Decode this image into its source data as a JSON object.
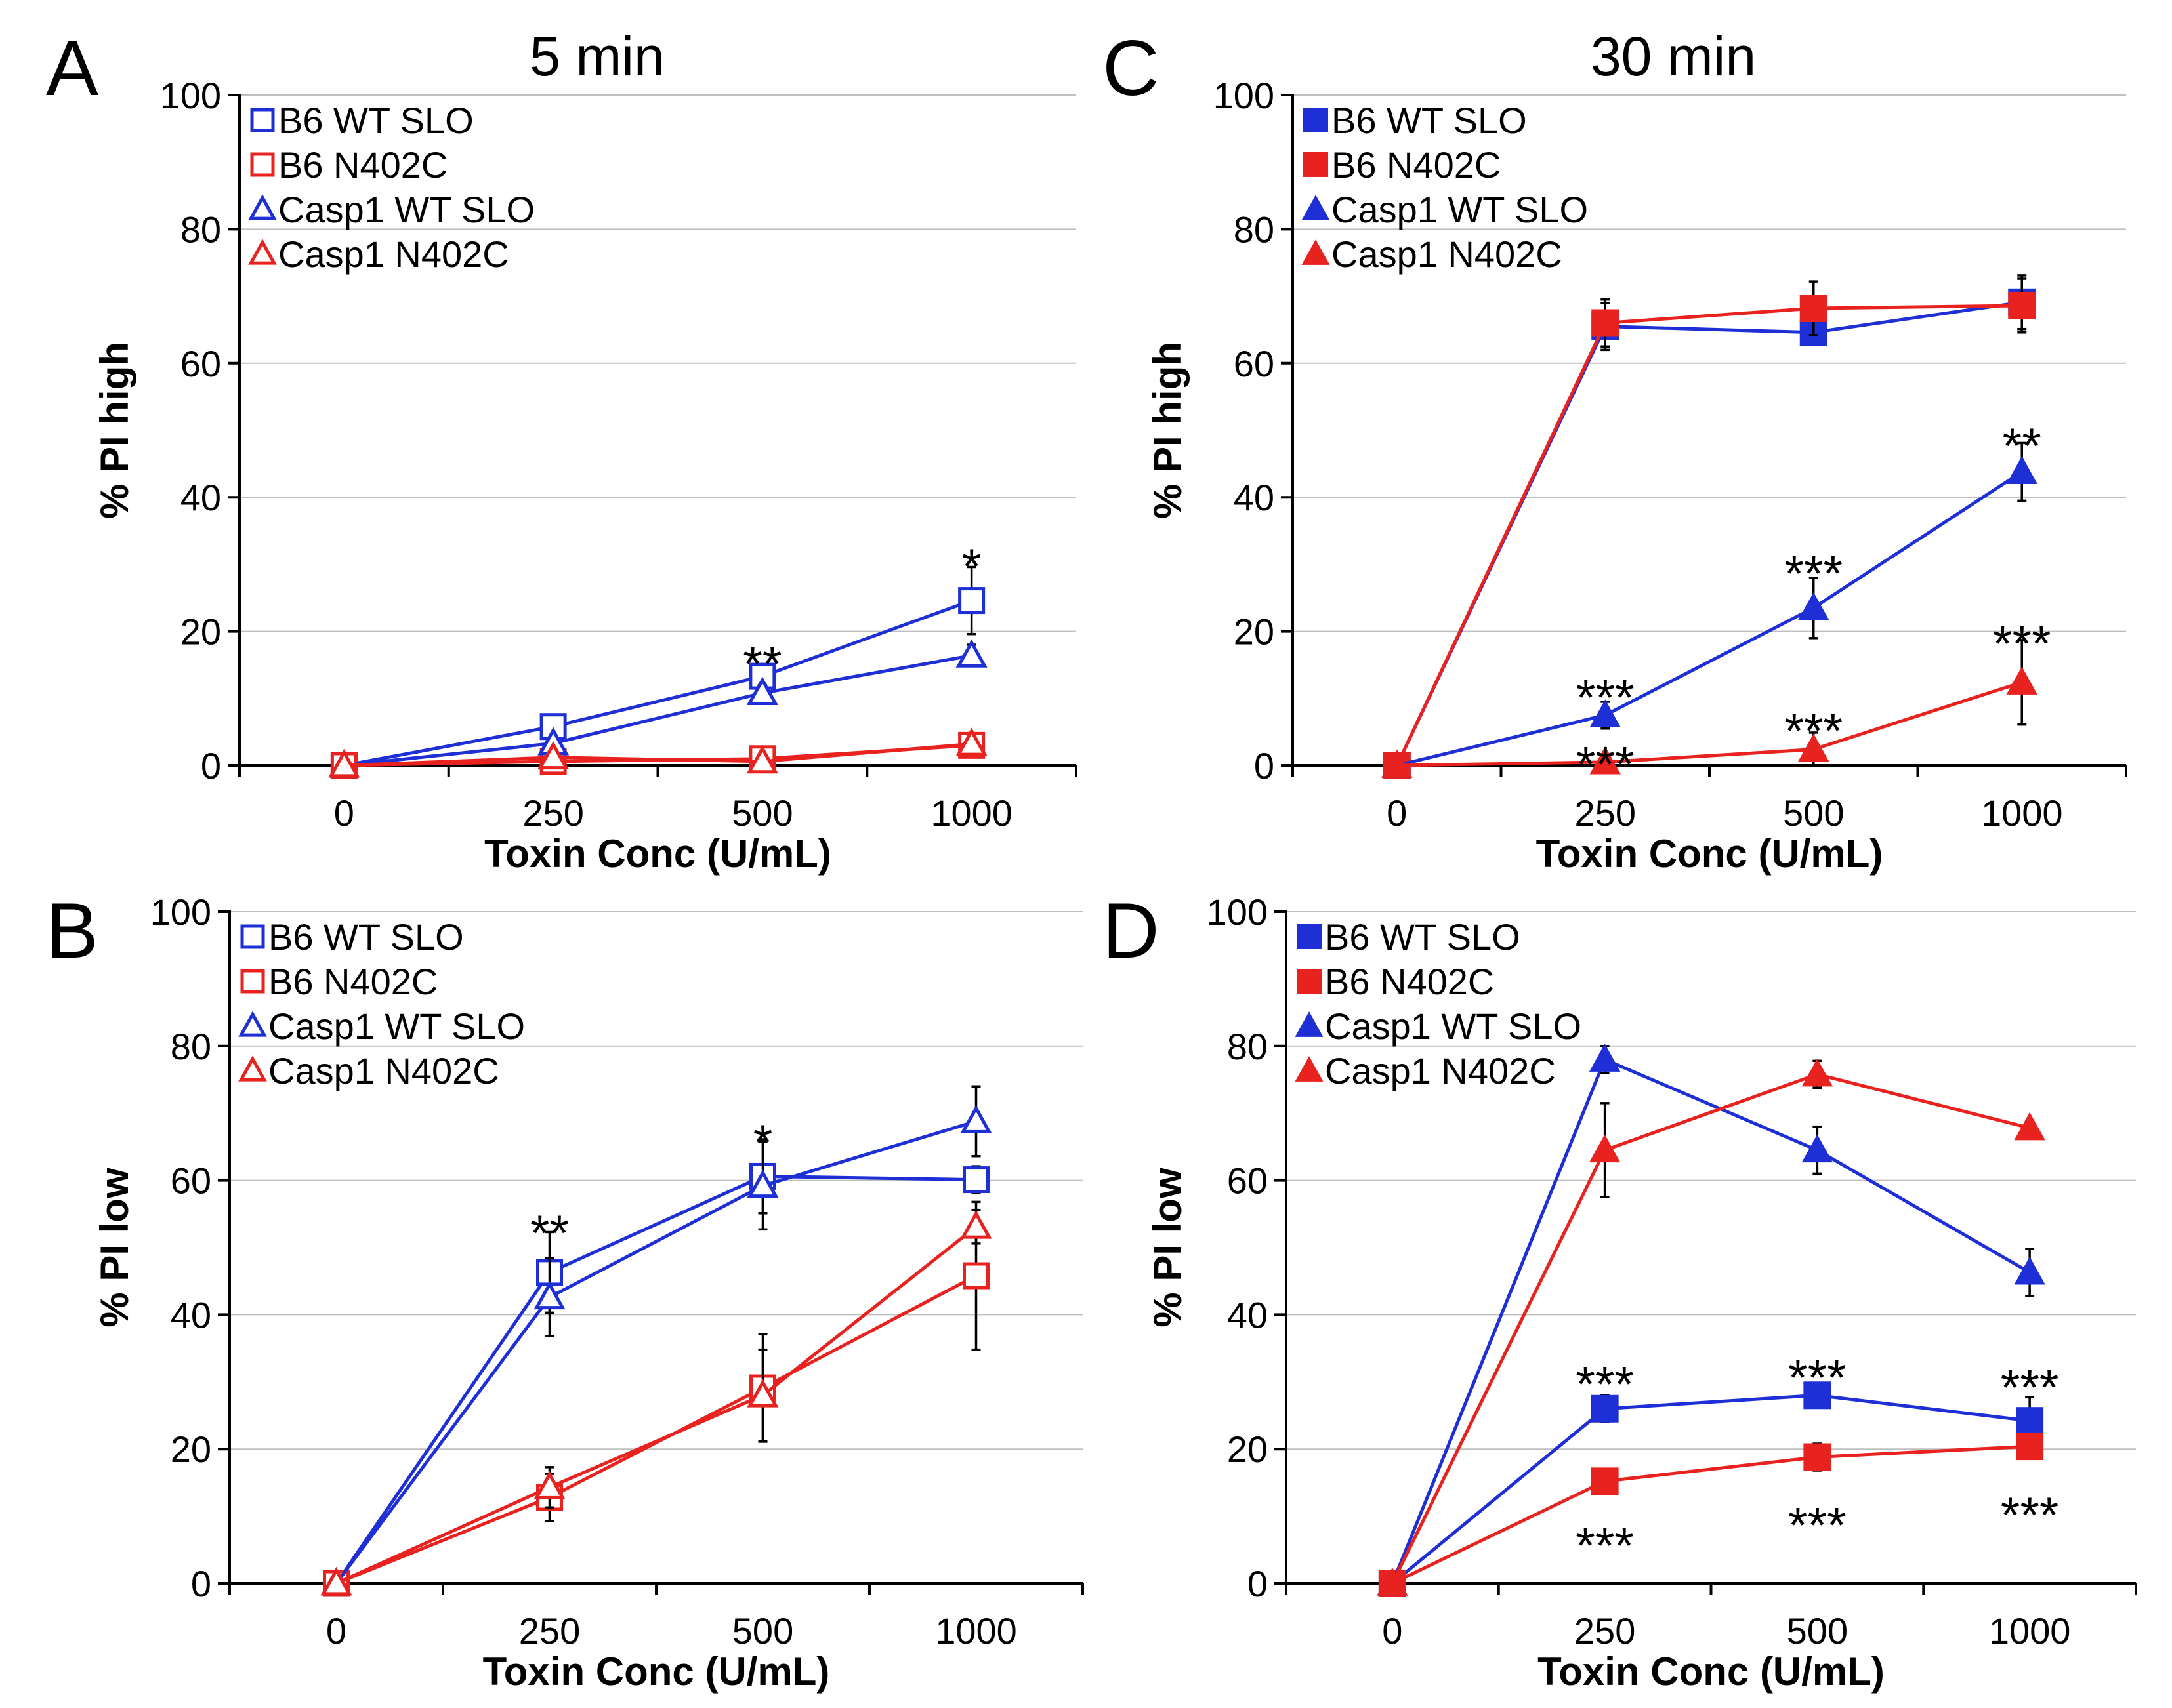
{
  "figure": {
    "colors": {
      "blue": "#1f2fd6",
      "red": "#e8221f",
      "axis": "#000000",
      "grid": "#bfbfbf"
    }
  },
  "chart_data": [
    {
      "id": "A",
      "letter": "A",
      "title": "5 min",
      "type": "line",
      "categories": [
        "0",
        "250",
        "500",
        "1000"
      ],
      "xlabel": "Toxin Conc (U/mL)",
      "ylabel": "% PI high",
      "ylim": [
        0,
        100
      ],
      "yticks": [
        "0",
        "20",
        "40",
        "60",
        "80",
        "100"
      ],
      "grid": true,
      "legend_position": "top-left",
      "series": [
        {
          "name": "B6 WT SLO",
          "color": "#1f2fd6",
          "marker": "square",
          "filled": false,
          "values": [
            0,
            5.8,
            13.3,
            24.6
          ],
          "errors": [
            0,
            0.8,
            1.8,
            5
          ]
        },
        {
          "name": "B6 N402C",
          "color": "#e8221f",
          "marker": "square",
          "filled": false,
          "values": [
            0,
            0.6,
            1.0,
            3.0
          ],
          "errors": [
            0,
            0.3,
            0.4,
            0.6
          ]
        },
        {
          "name": "Casp1 WT SLO",
          "color": "#1f2fd6",
          "marker": "triangle",
          "filled": false,
          "values": [
            0,
            3.3,
            10.8,
            16.4
          ],
          "errors": [
            0,
            0.6,
            1.2,
            1.6
          ]
        },
        {
          "name": "Casp1 N402C",
          "color": "#e8221f",
          "marker": "triangle",
          "filled": false,
          "values": [
            0,
            1.2,
            0.6,
            3.2
          ],
          "errors": [
            0,
            0.3,
            0.3,
            0.8
          ]
        }
      ],
      "annotations": [
        {
          "text": "**",
          "x_index": 2,
          "y": 16.5
        },
        {
          "text": "*",
          "x_index": 3,
          "y": 31
        }
      ]
    },
    {
      "id": "C",
      "letter": "C",
      "title": "30 min",
      "type": "line",
      "categories": [
        "0",
        "250",
        "500",
        "1000"
      ],
      "xlabel": "Toxin Conc (U/mL)",
      "ylabel": "% PI high",
      "ylim": [
        0,
        100
      ],
      "yticks": [
        "0",
        "20",
        "40",
        "60",
        "80",
        "100"
      ],
      "grid": true,
      "legend_position": "top-left",
      "series": [
        {
          "name": "B6 WT SLO",
          "color": "#1f2fd6",
          "marker": "square",
          "filled": true,
          "values": [
            0,
            65.5,
            64.6,
            69.1
          ],
          "errors": [
            0,
            3.5,
            1.5,
            4
          ]
        },
        {
          "name": "B6 N402C",
          "color": "#e8221f",
          "marker": "square",
          "filled": true,
          "values": [
            0,
            66.0,
            68.2,
            68.6
          ],
          "errors": [
            0,
            3.5,
            4,
            4
          ]
        },
        {
          "name": "Casp1 WT SLO",
          "color": "#1f2fd6",
          "marker": "triangle",
          "filled": true,
          "values": [
            0,
            7.5,
            23.5,
            43.8
          ],
          "errors": [
            0,
            2,
            4.5,
            4.3
          ]
        },
        {
          "name": "Casp1 N402C",
          "color": "#e8221f",
          "marker": "triangle",
          "filled": true,
          "values": [
            0,
            0.5,
            2.4,
            12.4
          ],
          "errors": [
            0,
            0.3,
            2.5,
            6.3
          ]
        }
      ],
      "annotations": [
        {
          "text": "**",
          "x_index": 3,
          "y": 49
        },
        {
          "text": "***",
          "x_index": 2,
          "y": 30
        },
        {
          "text": "***",
          "x_index": 3,
          "y": 19.5
        },
        {
          "text": "***",
          "x_index": 1,
          "y": 11.5
        },
        {
          "text": "***",
          "x_index": 2,
          "y": 6.5
        },
        {
          "text": "***",
          "x_index": 1,
          "y": 1.5
        }
      ]
    },
    {
      "id": "B",
      "letter": "B",
      "title": "",
      "type": "line",
      "categories": [
        "0",
        "250",
        "500",
        "1000"
      ],
      "xlabel": "Toxin Conc (U/mL)",
      "ylabel": "% PI low",
      "ylim": [
        0,
        100
      ],
      "yticks": [
        "0",
        "20",
        "40",
        "60",
        "80",
        "100"
      ],
      "grid": true,
      "legend_position": "top-left",
      "series": [
        {
          "name": "B6 WT SLO",
          "color": "#1f2fd6",
          "marker": "square",
          "filled": false,
          "values": [
            0,
            46.3,
            60.6,
            60.1
          ],
          "errors": [
            0,
            6,
            5.5,
            2
          ]
        },
        {
          "name": "B6 N402C",
          "color": "#e8221f",
          "marker": "square",
          "filled": false,
          "values": [
            0,
            12.8,
            29.1,
            45.8
          ],
          "errors": [
            0,
            3.5,
            8,
            11
          ]
        },
        {
          "name": "Casp1 WT SLO",
          "color": "#1f2fd6",
          "marker": "triangle",
          "filled": false,
          "values": [
            0,
            42.6,
            59.2,
            68.8
          ],
          "errors": [
            0,
            5.8,
            6.5,
            5.2
          ]
        },
        {
          "name": "Casp1 N402C",
          "color": "#e8221f",
          "marker": "triangle",
          "filled": false,
          "values": [
            0,
            14.3,
            28.0,
            53.1
          ],
          "errors": [
            0,
            3,
            6.8,
            2.5
          ]
        }
      ],
      "annotations": [
        {
          "text": "**",
          "x_index": 1,
          "y": 53.5
        },
        {
          "text": "*",
          "x_index": 2,
          "y": 67
        }
      ]
    },
    {
      "id": "D",
      "letter": "D",
      "title": "",
      "type": "line",
      "categories": [
        "0",
        "250",
        "500",
        "1000"
      ],
      "xlabel": "Toxin Conc (U/mL)",
      "ylabel": "% PI low",
      "ylim": [
        0,
        100
      ],
      "yticks": [
        "0",
        "20",
        "40",
        "60",
        "80",
        "100"
      ],
      "grid": true,
      "legend_position": "top-left",
      "series": [
        {
          "name": "B6 WT SLO",
          "color": "#1f2fd6",
          "marker": "square",
          "filled": true,
          "values": [
            0,
            26.0,
            28.0,
            24.2
          ],
          "errors": [
            0,
            2,
            1.5,
            3.5
          ]
        },
        {
          "name": "B6 N402C",
          "color": "#e8221f",
          "marker": "square",
          "filled": true,
          "values": [
            0,
            15.2,
            18.8,
            20.4
          ],
          "errors": [
            0,
            1,
            2,
            1.5
          ]
        },
        {
          "name": "Casp1 WT SLO",
          "color": "#1f2fd6",
          "marker": "triangle",
          "filled": true,
          "values": [
            0,
            78.0,
            64.5,
            46.3
          ],
          "errors": [
            0,
            2,
            3.5,
            3.5
          ]
        },
        {
          "name": "Casp1 N402C",
          "color": "#e8221f",
          "marker": "triangle",
          "filled": true,
          "values": [
            0,
            64.5,
            75.8,
            67.8
          ],
          "errors": [
            0,
            7,
            2,
            1
          ]
        }
      ],
      "annotations": [
        {
          "text": "***",
          "x_index": 1,
          "y": 31
        },
        {
          "text": "***",
          "x_index": 2,
          "y": 32
        },
        {
          "text": "***",
          "x_index": 3,
          "y": 30.5
        },
        {
          "text": "***",
          "x_index": 1,
          "y": 7
        },
        {
          "text": "***",
          "x_index": 2,
          "y": 10
        },
        {
          "text": "***",
          "x_index": 3,
          "y": 11.5
        }
      ]
    }
  ]
}
